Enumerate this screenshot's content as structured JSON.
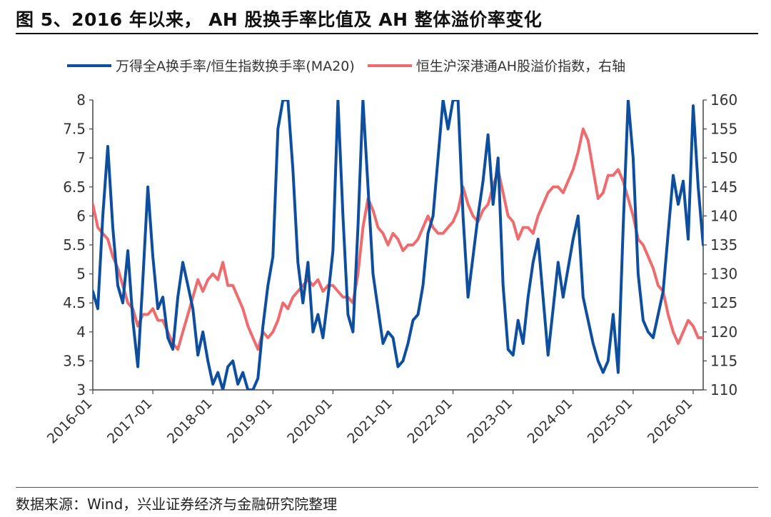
{
  "title": "图 5、2016 年以来， AH 股换手率比值及 AH 整体溢价率变化",
  "source": "数据来源：Wind，兴业证券经济与金融研究院整理",
  "colors": {
    "blue": "#0d4f9e",
    "red": "#ee6b6e"
  },
  "chart_data": {
    "type": "line",
    "x_unit": "month",
    "x_range": [
      "2016-01",
      "2026-03"
    ],
    "x_ticks": [
      "2016-01",
      "2017-01",
      "2018-01",
      "2019-01",
      "2020-01",
      "2021-01",
      "2022-01",
      "2023-01",
      "2024-01",
      "2025-01",
      "2026-01"
    ],
    "y_left": {
      "range": [
        3,
        8
      ],
      "ticks": [
        "3",
        "3.5",
        "4",
        "4.5",
        "5",
        "5.5",
        "6",
        "6.5",
        "7",
        "7.5",
        "8"
      ]
    },
    "y_right": {
      "range": [
        110,
        160
      ],
      "ticks": [
        "110",
        "115",
        "120",
        "125",
        "130",
        "135",
        "140",
        "145",
        "150",
        "155",
        "160"
      ]
    },
    "grid": false,
    "legend_position": "top",
    "series": [
      {
        "name": "万得全A换手率/恒生指数换手率(MA20)",
        "axis": "left",
        "color": "#0d4f9e",
        "points": [
          [
            "2016-01",
            4.7
          ],
          [
            "2016-02",
            4.4
          ],
          [
            "2016-03",
            6.0
          ],
          [
            "2016-04",
            7.2
          ],
          [
            "2016-05",
            5.8
          ],
          [
            "2016-06",
            4.8
          ],
          [
            "2016-07",
            4.5
          ],
          [
            "2016-08",
            5.4
          ],
          [
            "2016-09",
            4.2
          ],
          [
            "2016-10",
            3.4
          ],
          [
            "2016-11",
            4.9
          ],
          [
            "2016-12",
            6.5
          ],
          [
            "2017-01",
            5.3
          ],
          [
            "2017-02",
            4.4
          ],
          [
            "2017-03",
            4.6
          ],
          [
            "2017-04",
            3.9
          ],
          [
            "2017-05",
            3.7
          ],
          [
            "2017-06",
            4.6
          ],
          [
            "2017-07",
            5.2
          ],
          [
            "2017-08",
            4.8
          ],
          [
            "2017-09",
            4.4
          ],
          [
            "2017-10",
            3.6
          ],
          [
            "2017-11",
            4.0
          ],
          [
            "2017-12",
            3.5
          ],
          [
            "2018-01",
            3.1
          ],
          [
            "2018-02",
            3.3
          ],
          [
            "2018-03",
            3.0
          ],
          [
            "2018-04",
            3.4
          ],
          [
            "2018-05",
            3.5
          ],
          [
            "2018-06",
            3.1
          ],
          [
            "2018-07",
            3.3
          ],
          [
            "2018-08",
            3.0
          ],
          [
            "2018-09",
            3.0
          ],
          [
            "2018-10",
            3.2
          ],
          [
            "2018-11",
            4.1
          ],
          [
            "2018-12",
            4.8
          ],
          [
            "2019-01",
            5.3
          ],
          [
            "2019-02",
            7.5
          ],
          [
            "2019-03",
            8.0
          ],
          [
            "2019-04",
            8.0
          ],
          [
            "2019-05",
            6.8
          ],
          [
            "2019-06",
            5.2
          ],
          [
            "2019-07",
            4.5
          ],
          [
            "2019-08",
            5.2
          ],
          [
            "2019-09",
            4.0
          ],
          [
            "2019-10",
            4.3
          ],
          [
            "2019-11",
            3.9
          ],
          [
            "2019-12",
            4.6
          ],
          [
            "2020-01",
            5.4
          ],
          [
            "2020-02",
            8.0
          ],
          [
            "2020-03",
            6.0
          ],
          [
            "2020-04",
            4.3
          ],
          [
            "2020-05",
            4.0
          ],
          [
            "2020-06",
            5.8
          ],
          [
            "2020-07",
            8.0
          ],
          [
            "2020-08",
            6.5
          ],
          [
            "2020-09",
            5.0
          ],
          [
            "2020-10",
            4.4
          ],
          [
            "2020-11",
            3.8
          ],
          [
            "2020-12",
            4.0
          ],
          [
            "2021-01",
            3.9
          ],
          [
            "2021-02",
            3.4
          ],
          [
            "2021-03",
            3.5
          ],
          [
            "2021-04",
            3.8
          ],
          [
            "2021-05",
            4.2
          ],
          [
            "2021-06",
            4.3
          ],
          [
            "2021-07",
            4.8
          ],
          [
            "2021-08",
            5.7
          ],
          [
            "2021-09",
            6.0
          ],
          [
            "2021-10",
            7.0
          ],
          [
            "2021-11",
            8.0
          ],
          [
            "2021-12",
            7.5
          ],
          [
            "2022-01",
            8.0
          ],
          [
            "2022-02",
            8.0
          ],
          [
            "2022-03",
            6.0
          ],
          [
            "2022-04",
            4.6
          ],
          [
            "2022-05",
            5.3
          ],
          [
            "2022-06",
            6.0
          ],
          [
            "2022-07",
            6.6
          ],
          [
            "2022-08",
            7.4
          ],
          [
            "2022-09",
            6.2
          ],
          [
            "2022-10",
            7.0
          ],
          [
            "2022-11",
            4.8
          ],
          [
            "2022-12",
            3.7
          ],
          [
            "2023-01",
            3.6
          ],
          [
            "2023-02",
            4.2
          ],
          [
            "2023-03",
            3.8
          ],
          [
            "2023-04",
            4.6
          ],
          [
            "2023-05",
            5.2
          ],
          [
            "2023-06",
            5.6
          ],
          [
            "2023-07",
            4.6
          ],
          [
            "2023-08",
            3.6
          ],
          [
            "2023-09",
            4.4
          ],
          [
            "2023-10",
            5.2
          ],
          [
            "2023-11",
            4.6
          ],
          [
            "2023-12",
            5.1
          ],
          [
            "2024-01",
            5.6
          ],
          [
            "2024-02",
            6.0
          ],
          [
            "2024-03",
            4.6
          ],
          [
            "2024-04",
            4.2
          ],
          [
            "2024-05",
            3.8
          ],
          [
            "2024-06",
            3.5
          ],
          [
            "2024-07",
            3.3
          ],
          [
            "2024-08",
            3.5
          ],
          [
            "2024-09",
            4.3
          ],
          [
            "2024-10",
            3.3
          ],
          [
            "2024-11",
            5.8
          ],
          [
            "2024-12",
            8.0
          ],
          [
            "2025-01",
            7.0
          ],
          [
            "2025-02",
            5.0
          ],
          [
            "2025-03",
            4.2
          ],
          [
            "2025-04",
            4.0
          ],
          [
            "2025-05",
            3.9
          ],
          [
            "2025-06",
            4.3
          ],
          [
            "2025-07",
            4.7
          ],
          [
            "2025-08",
            5.7
          ],
          [
            "2025-09",
            6.7
          ],
          [
            "2025-10",
            6.2
          ],
          [
            "2025-11",
            6.6
          ],
          [
            "2025-12",
            5.6
          ],
          [
            "2026-01",
            7.9
          ],
          [
            "2026-02",
            6.5
          ],
          [
            "2026-03",
            5.5
          ]
        ]
      },
      {
        "name": "恒生沪深港通AH股溢价指数，右轴",
        "axis": "right",
        "color": "#ee6b6e",
        "points": [
          [
            "2016-01",
            142
          ],
          [
            "2016-02",
            138
          ],
          [
            "2016-03",
            137
          ],
          [
            "2016-04",
            136
          ],
          [
            "2016-05",
            133
          ],
          [
            "2016-06",
            131
          ],
          [
            "2016-07",
            128
          ],
          [
            "2016-08",
            125
          ],
          [
            "2016-09",
            124
          ],
          [
            "2016-10",
            121
          ],
          [
            "2016-11",
            123
          ],
          [
            "2016-12",
            123
          ],
          [
            "2017-01",
            124
          ],
          [
            "2017-02",
            122
          ],
          [
            "2017-03",
            122
          ],
          [
            "2017-04",
            120
          ],
          [
            "2017-05",
            118
          ],
          [
            "2017-06",
            117
          ],
          [
            "2017-07",
            120
          ],
          [
            "2017-08",
            123
          ],
          [
            "2017-09",
            126
          ],
          [
            "2017-10",
            129
          ],
          [
            "2017-11",
            127
          ],
          [
            "2017-12",
            129
          ],
          [
            "2018-01",
            130
          ],
          [
            "2018-02",
            129
          ],
          [
            "2018-03",
            132
          ],
          [
            "2018-04",
            128
          ],
          [
            "2018-05",
            128
          ],
          [
            "2018-06",
            126
          ],
          [
            "2018-07",
            124
          ],
          [
            "2018-08",
            121
          ],
          [
            "2018-09",
            119
          ],
          [
            "2018-10",
            117
          ],
          [
            "2018-11",
            120
          ],
          [
            "2018-12",
            119
          ],
          [
            "2019-01",
            120
          ],
          [
            "2019-02",
            122
          ],
          [
            "2019-03",
            125
          ],
          [
            "2019-04",
            124
          ],
          [
            "2019-05",
            126
          ],
          [
            "2019-06",
            127
          ],
          [
            "2019-07",
            128
          ],
          [
            "2019-08",
            129
          ],
          [
            "2019-09",
            128
          ],
          [
            "2019-10",
            129
          ],
          [
            "2019-11",
            127
          ],
          [
            "2019-12",
            128
          ],
          [
            "2020-01",
            128
          ],
          [
            "2020-02",
            127
          ],
          [
            "2020-03",
            126
          ],
          [
            "2020-04",
            126
          ],
          [
            "2020-05",
            125
          ],
          [
            "2020-06",
            130
          ],
          [
            "2020-07",
            138
          ],
          [
            "2020-08",
            143
          ],
          [
            "2020-09",
            141
          ],
          [
            "2020-10",
            138
          ],
          [
            "2020-11",
            137
          ],
          [
            "2020-12",
            135
          ],
          [
            "2021-01",
            137
          ],
          [
            "2021-02",
            136
          ],
          [
            "2021-03",
            134
          ],
          [
            "2021-04",
            135
          ],
          [
            "2021-05",
            135
          ],
          [
            "2021-06",
            136
          ],
          [
            "2021-07",
            138
          ],
          [
            "2021-08",
            140
          ],
          [
            "2021-09",
            138
          ],
          [
            "2021-10",
            137
          ],
          [
            "2021-11",
            137
          ],
          [
            "2021-12",
            138
          ],
          [
            "2022-01",
            139
          ],
          [
            "2022-02",
            141
          ],
          [
            "2022-03",
            145
          ],
          [
            "2022-04",
            142
          ],
          [
            "2022-05",
            140
          ],
          [
            "2022-06",
            139
          ],
          [
            "2022-07",
            141
          ],
          [
            "2022-08",
            142
          ],
          [
            "2022-09",
            145
          ],
          [
            "2022-10",
            148
          ],
          [
            "2022-11",
            144
          ],
          [
            "2022-12",
            140
          ],
          [
            "2023-01",
            139
          ],
          [
            "2023-02",
            136
          ],
          [
            "2023-03",
            138
          ],
          [
            "2023-04",
            138
          ],
          [
            "2023-05",
            137
          ],
          [
            "2023-06",
            140
          ],
          [
            "2023-07",
            142
          ],
          [
            "2023-08",
            144
          ],
          [
            "2023-09",
            145
          ],
          [
            "2023-10",
            145
          ],
          [
            "2023-11",
            144
          ],
          [
            "2023-12",
            146
          ],
          [
            "2024-01",
            148
          ],
          [
            "2024-02",
            151
          ],
          [
            "2024-03",
            155
          ],
          [
            "2024-04",
            153
          ],
          [
            "2024-05",
            148
          ],
          [
            "2024-06",
            143
          ],
          [
            "2024-07",
            144
          ],
          [
            "2024-08",
            147
          ],
          [
            "2024-09",
            147
          ],
          [
            "2024-10",
            148
          ],
          [
            "2024-11",
            146
          ],
          [
            "2024-12",
            143
          ],
          [
            "2025-01",
            140
          ],
          [
            "2025-02",
            136
          ],
          [
            "2025-03",
            135
          ],
          [
            "2025-04",
            133
          ],
          [
            "2025-05",
            131
          ],
          [
            "2025-06",
            128
          ],
          [
            "2025-07",
            127
          ],
          [
            "2025-08",
            123
          ],
          [
            "2025-09",
            120
          ],
          [
            "2025-10",
            118
          ],
          [
            "2025-11",
            120
          ],
          [
            "2025-12",
            122
          ],
          [
            "2026-01",
            121
          ],
          [
            "2026-02",
            119
          ],
          [
            "2026-03",
            119
          ]
        ]
      }
    ]
  }
}
